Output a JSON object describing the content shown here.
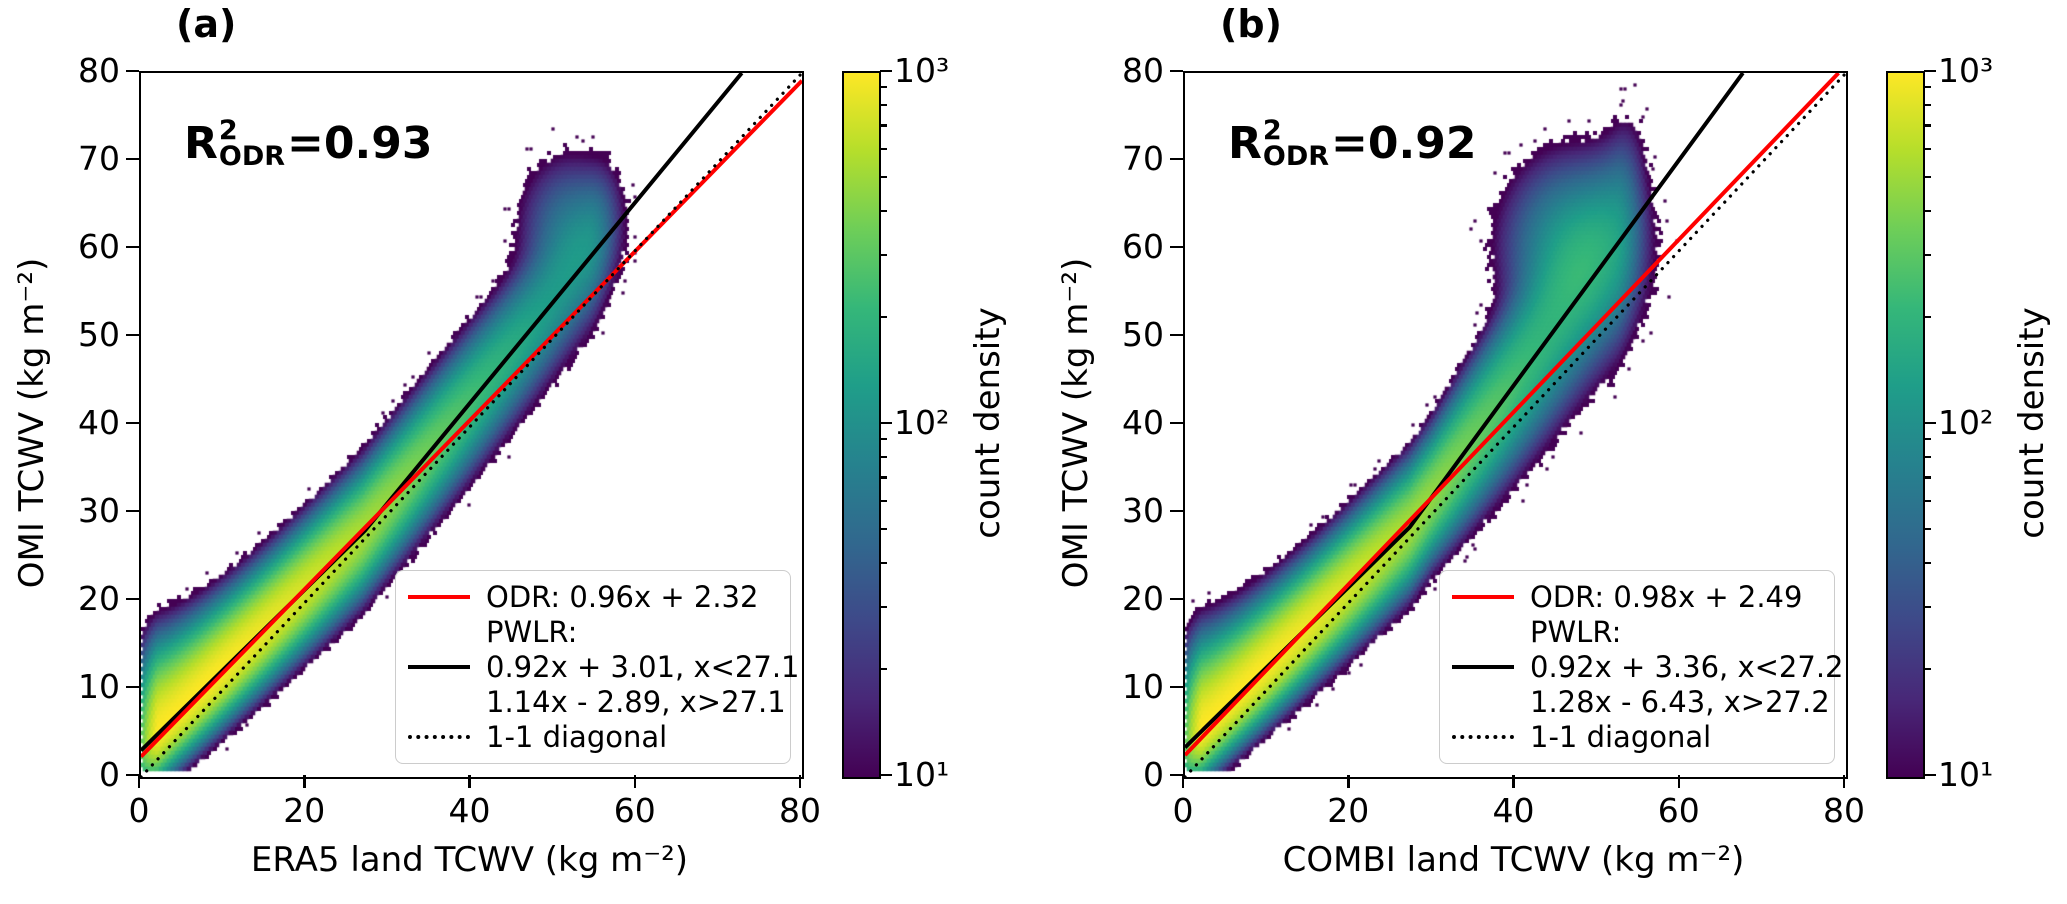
{
  "figure": {
    "panels": [
      {
        "title": "(a)",
        "r2": {
          "prefix": "R",
          "sup": "2",
          "sub": "ODR",
          "value": "=0.93"
        },
        "xlabel": "ERA5 land TCWV (kg m⁻²)",
        "ylabel": "OMI TCWV (kg m⁻²)",
        "legend": {
          "odr": "ODR: 0.96x + 2.32",
          "pwlr_title": "PWLR:",
          "pwlr_line1": "0.92x + 3.01, x<27.1",
          "pwlr_line2": "1.14x - 2.89, x>27.1",
          "diag": "1-1 diagonal"
        },
        "colorbar": {
          "label": "count density",
          "tick_top": "10³",
          "tick_mid": "10²",
          "tick_bottom": "10¹"
        }
      },
      {
        "title": "(b)",
        "r2": {
          "prefix": "R",
          "sup": "2",
          "sub": "ODR",
          "value": "=0.92"
        },
        "xlabel": "COMBI land TCWV (kg m⁻²)",
        "ylabel": "OMI TCWV (kg m⁻²)",
        "legend": {
          "odr": "ODR: 0.98x + 2.49",
          "pwlr_title": "PWLR:",
          "pwlr_line1": "0.92x + 3.36, x<27.2",
          "pwlr_line2": "1.28x - 6.43, x>27.2",
          "diag": "1-1 diagonal"
        },
        "colorbar": {
          "label": "count density",
          "tick_top": "10³",
          "tick_mid": "10²",
          "tick_bottom": "10¹"
        }
      }
    ]
  },
  "chart_data": [
    {
      "type": "heatmap",
      "subtype": "hexbin-density-scatter",
      "panel_label": "(a)",
      "annotation_r2_odr": 0.93,
      "xlabel": "ERA5 land TCWV (kg m⁻²)",
      "ylabel": "OMI TCWV (kg m⁻²)",
      "xlim": [
        0,
        80
      ],
      "ylim": [
        0,
        80
      ],
      "xticks": [
        0,
        20,
        40,
        60,
        80
      ],
      "yticks": [
        0,
        10,
        20,
        30,
        40,
        50,
        60,
        70,
        80
      ],
      "odr_fit": {
        "slope": 0.96,
        "intercept": 2.32
      },
      "pwlr_fit": {
        "slope1": 0.92,
        "intercept1": 3.01,
        "breakpoint": 27.1,
        "slope2": 1.14,
        "intercept2": -2.89
      },
      "reference_line": "1-1 diagonal",
      "colorbar": {
        "label": "count density",
        "scale": "log",
        "vmin": 10,
        "vmax": 1000,
        "major_ticks": [
          10,
          100,
          1000
        ]
      },
      "data_extent": {
        "x": [
          0,
          59
        ],
        "y": [
          1,
          72
        ]
      },
      "cloud_model": {
        "seed": 7,
        "sigma0": 2.3,
        "sigma_x": 0.035,
        "widen_after_30": 0,
        "upfan_amp": 1.2,
        "upfan_scale": 8,
        "amp_max": 1000,
        "amp_start": 8,
        "amp_scale": 26,
        "amp_pow": 1.6,
        "taper_x": 54,
        "taper_w": 2.6,
        "blob": {
          "cx": 52,
          "cy": 62.5,
          "sx": 3.4,
          "sy": 4.4,
          "amp": 55
        }
      }
    },
    {
      "type": "heatmap",
      "subtype": "hexbin-density-scatter",
      "panel_label": "(b)",
      "annotation_r2_odr": 0.92,
      "xlabel": "COMBI land TCWV (kg m⁻²)",
      "ylabel": "OMI TCWV (kg m⁻²)",
      "xlim": [
        0,
        80
      ],
      "ylim": [
        0,
        80
      ],
      "xticks": [
        0,
        20,
        40,
        60,
        80
      ],
      "yticks": [
        0,
        10,
        20,
        30,
        40,
        50,
        60,
        70,
        80
      ],
      "odr_fit": {
        "slope": 0.98,
        "intercept": 2.49
      },
      "pwlr_fit": {
        "slope1": 0.92,
        "intercept1": 3.36,
        "breakpoint": 27.2,
        "slope2": 1.28,
        "intercept2": -6.43
      },
      "reference_line": "1-1 diagonal",
      "colorbar": {
        "label": "count density",
        "scale": "log",
        "vmin": 10,
        "vmax": 1000,
        "major_ticks": [
          10,
          100,
          1000
        ]
      },
      "data_extent": {
        "x": [
          0,
          57
        ],
        "y": [
          1,
          70
        ]
      },
      "cloud_model": {
        "seed": 13,
        "sigma0": 2.3,
        "sigma_x": 0.035,
        "widen_after_30": 0.09,
        "upfan_amp": 1.2,
        "upfan_scale": 8,
        "amp_max": 1000,
        "amp_start": 8,
        "amp_scale": 26,
        "amp_pow": 1.6,
        "taper_x": 52,
        "taper_w": 2.6,
        "blob": {
          "cx": 47,
          "cy": 60,
          "sx": 4.4,
          "sy": 5.4,
          "amp": 115
        }
      }
    }
  ],
  "colors": {
    "odr_line": "#ff0000",
    "pwlr_line": "#000000",
    "diagonal_line": "#000000",
    "axis": "#000000",
    "legend_border": "#cccccc",
    "viridis": [
      "#440154",
      "#482878",
      "#3e4989",
      "#31688e",
      "#26828e",
      "#1f9e89",
      "#35b779",
      "#6ece58",
      "#b5de2b",
      "#fde725"
    ]
  }
}
